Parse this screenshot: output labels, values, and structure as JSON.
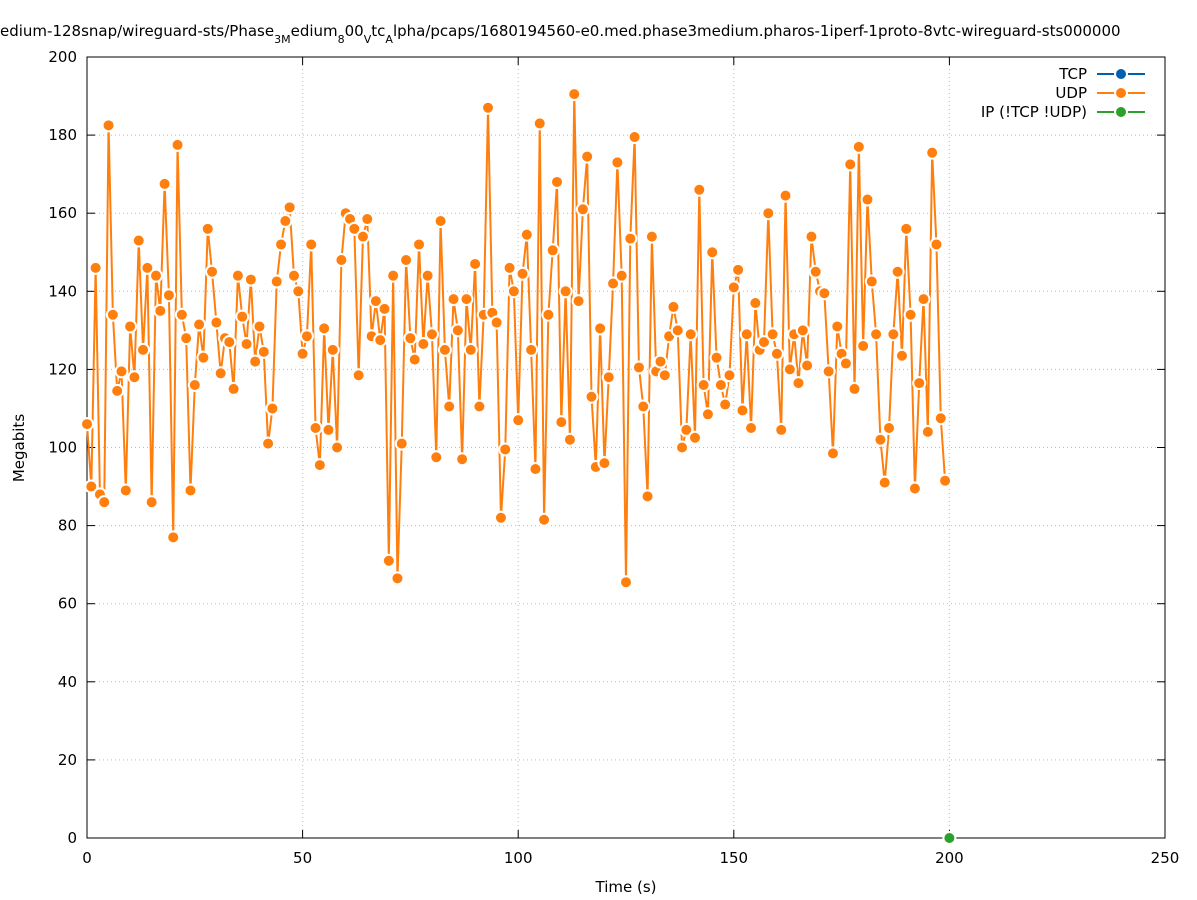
{
  "chart_data": {
    "type": "line",
    "title": [
      {
        "text": "edium-128snap/wireguard-sts/Phase"
      },
      {
        "text": "3M",
        "sub": true
      },
      {
        "text": "edium"
      },
      {
        "text": "8",
        "sub": true
      },
      {
        "text": "00"
      },
      {
        "text": "V",
        "sub": true
      },
      {
        "text": "tc"
      },
      {
        "text": "A",
        "sub": true
      },
      {
        "text": "lpha/pcaps/1680194560-e0.med.phase3medium.pharos-1iperf-1proto-8vtc-wireguard-sts000000"
      }
    ],
    "x_label": "Time (s)",
    "y_label": "Megabits",
    "xlim": [
      0,
      250
    ],
    "xticks": [
      0,
      50,
      100,
      150,
      200,
      250
    ],
    "ylim": [
      0,
      200
    ],
    "yticks": [
      0,
      20,
      40,
      60,
      80,
      100,
      120,
      140,
      160,
      180,
      200
    ],
    "grid": true,
    "legend": "top-right",
    "series": [
      {
        "name": "TCP",
        "color": "#0060ad",
        "x": [],
        "values": []
      },
      {
        "name": "UDP",
        "color": "#ff7f0e",
        "x": [
          0,
          1,
          2,
          3,
          4,
          5,
          6,
          7,
          8,
          9,
          10,
          11,
          12,
          13,
          14,
          15,
          16,
          17,
          18,
          19,
          20,
          21,
          22,
          23,
          24,
          25,
          26,
          27,
          28,
          29,
          30,
          31,
          32,
          33,
          34,
          35,
          36,
          37,
          38,
          39,
          40,
          41,
          42,
          43,
          44,
          45,
          46,
          47,
          48,
          49,
          50,
          51,
          52,
          53,
          54,
          55,
          56,
          57,
          58,
          59,
          60,
          61,
          62,
          63,
          64,
          65,
          66,
          67,
          68,
          69,
          70,
          71,
          72,
          73,
          74,
          75,
          76,
          77,
          78,
          79,
          80,
          81,
          82,
          83,
          84,
          85,
          86,
          87,
          88,
          89,
          90,
          91,
          92,
          93,
          94,
          95,
          96,
          97,
          98,
          99,
          100,
          101,
          102,
          103,
          104,
          105,
          106,
          107,
          108,
          109,
          110,
          111,
          112,
          113,
          114,
          115,
          116,
          117,
          118,
          119,
          120,
          121,
          122,
          123,
          124,
          125,
          126,
          127,
          128,
          129,
          130,
          131,
          132,
          133,
          134,
          135,
          136,
          137,
          138,
          139,
          140,
          141,
          142,
          143,
          144,
          145,
          146,
          147,
          148,
          149,
          150,
          151,
          152,
          153,
          154,
          155,
          156,
          157,
          158,
          159,
          160,
          161,
          162,
          163,
          164,
          165,
          166,
          167,
          168,
          169,
          170,
          171,
          172,
          173,
          174,
          175,
          176,
          177,
          178,
          179,
          180,
          181,
          182,
          183,
          184,
          185,
          186,
          187,
          188,
          189,
          190,
          191,
          192,
          193,
          194,
          195,
          196,
          197,
          198,
          199
        ],
        "values": [
          106,
          90,
          146,
          88,
          86,
          182.5,
          134,
          114.5,
          119.5,
          89,
          131,
          118,
          153,
          125,
          146,
          86,
          144,
          135,
          167.5,
          139,
          77,
          177.5,
          134,
          128,
          89,
          116,
          131.5,
          123,
          156,
          145,
          132,
          119,
          128,
          127,
          115,
          144,
          133.5,
          126.5,
          143,
          122,
          131,
          124.5,
          101,
          110,
          142.5,
          152,
          158,
          161.5,
          144,
          140,
          124,
          128.5,
          152,
          105,
          95.5,
          130.5,
          104.5,
          125,
          100,
          148,
          160,
          158.5,
          156,
          118.5,
          154,
          158.5,
          128.5,
          137.5,
          127.5,
          135.5,
          71,
          144,
          66.5,
          101,
          148,
          128,
          122.5,
          152,
          126.5,
          144,
          129,
          97.5,
          158,
          125,
          110.5,
          138,
          130,
          97,
          138,
          125,
          147,
          110.5,
          134,
          187,
          134.5,
          132,
          82,
          99.5,
          146,
          140,
          107,
          144.5,
          154.5,
          125,
          94.5,
          183,
          81.5,
          134,
          150.5,
          168,
          106.5,
          140,
          102,
          190.5,
          137.5,
          161,
          174.5,
          113,
          95,
          130.5,
          96,
          118,
          142,
          173,
          144,
          65.5,
          153.5,
          179.5,
          120.5,
          110.5,
          87.5,
          154,
          119.5,
          122,
          118.5,
          128.5,
          136,
          130,
          100,
          104.5,
          129,
          102.5,
          166,
          116,
          108.5,
          150,
          123,
          116,
          111,
          118.5,
          141,
          145.5,
          109.5,
          129,
          105,
          137,
          125,
          127,
          160,
          129,
          124,
          104.5,
          164.5,
          120,
          129,
          116.5,
          130,
          121,
          154,
          145,
          140,
          139.5,
          119.5,
          98.5,
          131,
          124,
          121.5,
          172.5,
          115,
          177,
          126,
          163.5,
          142.5,
          129,
          102,
          91,
          105,
          129,
          145,
          123.5,
          156,
          134,
          89.5,
          116.5,
          138,
          104,
          175.5,
          152,
          107.5,
          91.5
        ]
      },
      {
        "name": "IP (!TCP  !UDP)",
        "color": "#2ca02c",
        "x": [
          200
        ],
        "values": [
          0
        ]
      }
    ]
  }
}
